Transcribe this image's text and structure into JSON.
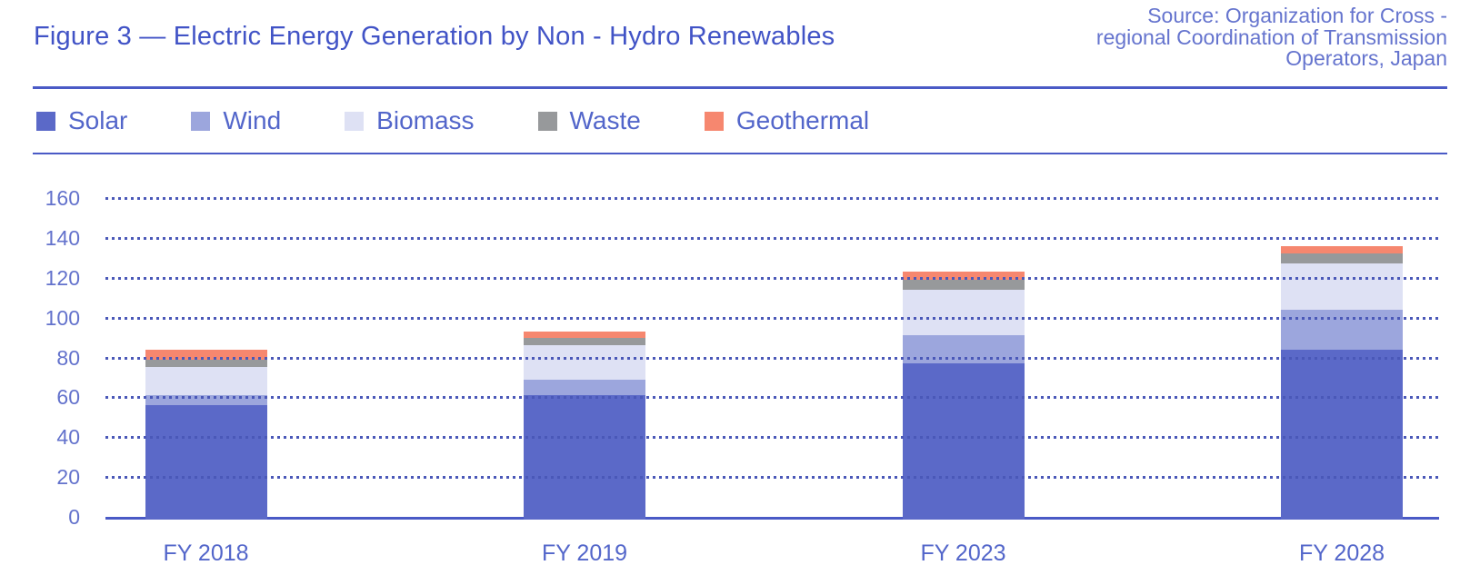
{
  "header": {
    "title": "Figure 3 — Electric Energy Generation by Non - Hydro Renewables",
    "source_lines": [
      "Source: Organization for Cross -",
      "regional Coordination of Transmission",
      "Operators, Japan"
    ]
  },
  "chart_data": {
    "type": "bar",
    "stacked": true,
    "title": "Electric Energy Generation by Non - Hydro Renewables",
    "xlabel": "",
    "ylabel": "",
    "categories": [
      "FY 2018",
      "FY 2019",
      "FY 2023",
      "FY 2028"
    ],
    "series": [
      {
        "name": "Solar",
        "color": "#5b69c8",
        "values": [
          56,
          61,
          77,
          84
        ]
      },
      {
        "name": "Wind",
        "color": "#9ca6dd",
        "values": [
          5,
          8,
          14,
          20
        ]
      },
      {
        "name": "Biomass",
        "color": "#dee1f4",
        "values": [
          14,
          17,
          23,
          23
        ]
      },
      {
        "name": "Waste",
        "color": "#97999b",
        "values": [
          4,
          4,
          5,
          5
        ]
      },
      {
        "name": "Geothermal",
        "color": "#f6876f",
        "values": [
          5,
          3,
          4,
          4
        ]
      }
    ],
    "totals": [
      84,
      93,
      123,
      136
    ],
    "ylim": [
      0,
      160
    ],
    "yticks": [
      0,
      20,
      40,
      60,
      80,
      100,
      120,
      140,
      160
    ],
    "grid": "dotted horizontal lines drawn over bars",
    "legend_position": "top"
  },
  "colors": {
    "accent_rule": "#4a5ac6",
    "title_text": "#4153c6",
    "label_text": "#5366ca",
    "tick_text": "#6372cc",
    "source_text": "#6574ce",
    "gridline": "#4a58b8"
  }
}
